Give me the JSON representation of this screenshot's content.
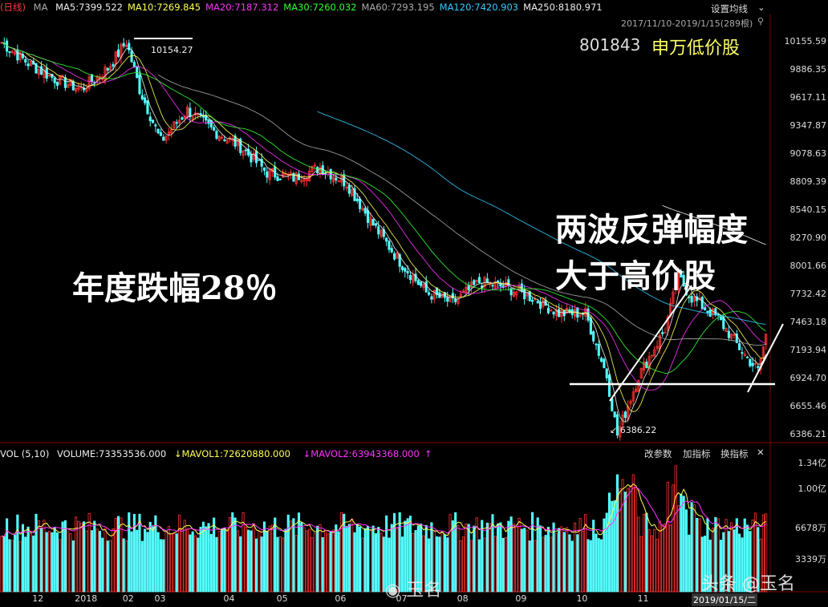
{
  "header": {
    "period": "(日线)",
    "ma_label": "MA",
    "ma_items": [
      {
        "label": "MA5:7399.522",
        "color": "#eeeeee"
      },
      {
        "label": "MA10:7269.845",
        "color": "#ffff55"
      },
      {
        "label": "MA20:7187.312",
        "color": "#ff33ff"
      },
      {
        "label": "MA30:7260.032",
        "color": "#33ff33"
      },
      {
        "label": "MA60:7293.195",
        "color": "#aaaaaa"
      },
      {
        "label": "MA120:7420.903",
        "color": "#33ccff"
      },
      {
        "label": "MA250:8180.971",
        "color": "#eeeeee"
      }
    ],
    "settings_label": "设置均线",
    "date_range": "2017/11/10-2019/1/15(289根)"
  },
  "index": {
    "code": "801843",
    "name": "申万低价股"
  },
  "annotations": {
    "yearly_drop": "年度跌幅28％",
    "rebound_line1": "两波反弹幅度",
    "rebound_line2": "大于高价股",
    "high_label": "10154.27",
    "low_label": "6386.22"
  },
  "volume_header": {
    "vol_label": "VOL (5,10)",
    "volume": "VOLUME:73353536.000",
    "mavol1": "MAVOL1:72620880.000",
    "mavol2": "MAVOL2:63943368.000",
    "buttons": [
      "改参数",
      "加指标",
      "换指标"
    ]
  },
  "watermark": {
    "weibo": "玉名",
    "toutiao": "头条 @玉名"
  },
  "chart_data": {
    "type": "line",
    "title": "申万低价股",
    "price_ticks": [
      "10155.59",
      "9886.35",
      "9617.11",
      "9347.87",
      "9078.63",
      "8809.39",
      "8540.15",
      "8270.90",
      "8001.66",
      "7732.42",
      "7463.18",
      "7193.94",
      "6924.70",
      "6655.46",
      "6386.21"
    ],
    "price_range": [
      6386.21,
      10155.59
    ],
    "volume_ticks": [
      "1.34亿",
      "1.00亿",
      "6678万",
      "3339万"
    ],
    "x_labels": [
      "12",
      "2018",
      "02",
      "03",
      "04",
      "05",
      "06",
      "07",
      "08",
      "09",
      "10",
      "11"
    ],
    "last_date": "2019/01/15/二",
    "price_path": [
      [
        0,
        10150
      ],
      [
        10,
        9950
      ],
      [
        20,
        9800
      ],
      [
        30,
        9700
      ],
      [
        40,
        9900
      ],
      [
        47,
        10154.27
      ],
      [
        52,
        9700
      ],
      [
        60,
        9200
      ],
      [
        70,
        9500
      ],
      [
        80,
        9300
      ],
      [
        90,
        9150
      ],
      [
        100,
        8900
      ],
      [
        110,
        8850
      ],
      [
        120,
        8950
      ],
      [
        130,
        8800
      ],
      [
        140,
        8400
      ],
      [
        150,
        8050
      ],
      [
        160,
        7750
      ],
      [
        170,
        7650
      ],
      [
        180,
        7850
      ],
      [
        190,
        7800
      ],
      [
        200,
        7700
      ],
      [
        210,
        7550
      ],
      [
        220,
        7550
      ],
      [
        228,
        6950
      ],
      [
        232,
        6386.22
      ],
      [
        240,
        6950
      ],
      [
        250,
        7400
      ],
      [
        255,
        7900
      ],
      [
        260,
        7700
      ],
      [
        270,
        7500
      ],
      [
        280,
        7150
      ],
      [
        285,
        7000
      ],
      [
        289,
        7450
      ]
    ],
    "grid": false,
    "legend": "top"
  }
}
